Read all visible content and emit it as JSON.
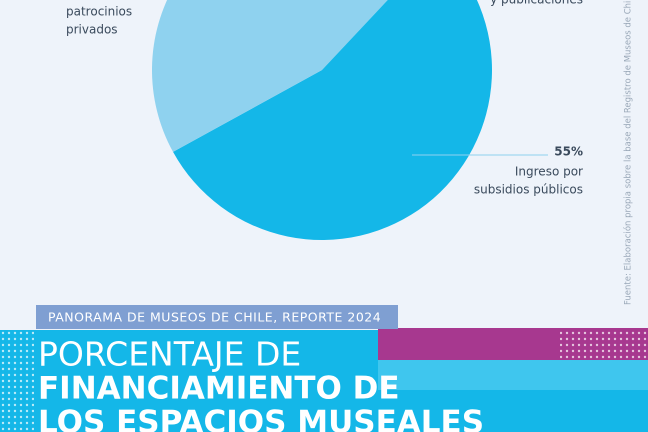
{
  "header": {
    "banner": "PANORAMA DE MUSEOS DE CHILE, REPORTE 2024",
    "title_lines": [
      "PORCENTAJE DE",
      "FINANCIAMIENTO DE",
      "LOS ESPACIOS MUSEALES"
    ]
  },
  "source": "Fuente: Elaboración propia sobre la base del Registro de Museos de Chile (s de ab",
  "chart_data": {
    "type": "pie",
    "categories": [
      [
        "y publicaciones"
      ],
      [
        "Ingreso por",
        "subsidios públicos"
      ],
      [
        "patrocinios",
        "privados"
      ]
    ],
    "values": [
      12,
      55,
      33
    ],
    "value_labels": [
      null,
      "55%",
      null
    ],
    "colors": [
      "#8fd2ef",
      "#14b7e8",
      "#8fd2ef"
    ]
  }
}
